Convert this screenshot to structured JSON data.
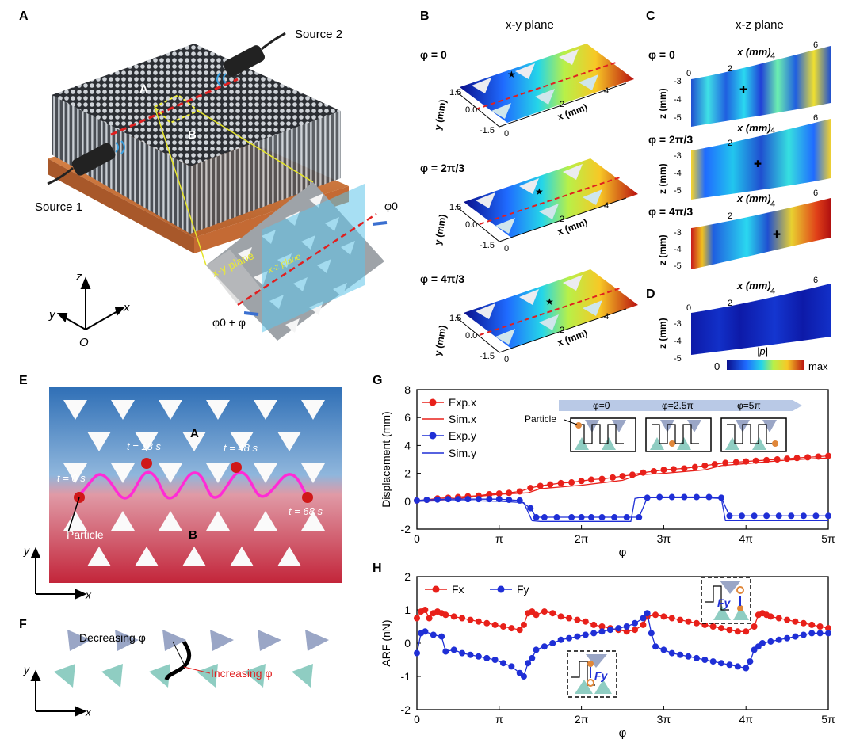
{
  "panels": {
    "A": {
      "label": "A",
      "source1": "Source 1",
      "source2": "Source 2",
      "region_a": "A",
      "region_b": "B",
      "xy_plane": "x-y plane",
      "xz_plane": "x-z plane",
      "phi0": "φ0",
      "phi0_plus_phi": "φ0 + φ",
      "axis_z": "z",
      "axis_y": "y",
      "axis_x": "x",
      "origin": "O"
    },
    "B": {
      "label": "B",
      "title": "x-y plane",
      "phases": [
        "φ = 0",
        "φ = 2π/3",
        "φ = 4π/3"
      ],
      "y_axis_label": "y (mm)",
      "x_axis_label": "x (mm)",
      "y_ticks": [
        "1.5",
        "0.0",
        "-1.5"
      ],
      "x_ticks": [
        "0",
        "2",
        "4"
      ]
    },
    "C": {
      "label": "C",
      "title": "x-z plane",
      "phases": [
        "φ = 0",
        "φ = 2π/3",
        "φ = 4π/3"
      ],
      "x_axis_label": "x (mm)",
      "z_axis_label": "z (mm)",
      "x_ticks": [
        "0",
        "2",
        "4",
        "6"
      ],
      "z_ticks": [
        "-3",
        "-4",
        "-5"
      ]
    },
    "D": {
      "label": "D",
      "x_axis_label": "x (mm)",
      "z_axis_label": "z (mm)",
      "x_ticks": [
        "0",
        "2",
        "4",
        "6"
      ],
      "z_ticks": [
        "-3",
        "-4",
        "-5"
      ],
      "colorbar_min": "0",
      "colorbar_max": "max",
      "colorbar_label": "|p|"
    },
    "E": {
      "label": "E",
      "region_a": "A",
      "region_b": "B",
      "times": [
        "t = 0 s",
        "t = 18 s",
        "t = 48 s",
        "t = 68 s"
      ],
      "particle": "Particle",
      "axis_y": "y",
      "axis_x": "x"
    },
    "F": {
      "label": "F",
      "decreasing": "Decreasing φ",
      "increasing": "Increasing φ",
      "axis_y": "y",
      "axis_x": "x"
    },
    "G": {
      "label": "G",
      "inset_phases": [
        "φ=0",
        "φ=2.5π",
        "φ=5π"
      ],
      "inset_particle": "Particle"
    },
    "H": {
      "label": "H",
      "inset_label_a": "Fy",
      "inset_label_b": "Fy"
    }
  },
  "colors": {
    "red": "#e8201a",
    "blue": "#1f2fd6",
    "field_blue": "#2f6fb6",
    "field_red": "#c3253a",
    "magenta": "#ff2bd6"
  },
  "chart_data": [
    {
      "id": "G",
      "type": "line",
      "xlabel": "φ",
      "ylabel": "Displacement (mm)",
      "xlim": [
        0,
        5
      ],
      "ylim": [
        -2,
        8
      ],
      "x_tick_values": [
        0,
        1,
        2,
        3,
        4,
        5
      ],
      "x_tick_labels": [
        "0",
        "π",
        "2π",
        "3π",
        "4π",
        "5π"
      ],
      "y_ticks": [
        -2,
        0,
        2,
        4,
        6,
        8
      ],
      "legend": "top-left",
      "series": [
        {
          "name": "Exp.x",
          "style": "markers-line",
          "color": "#e8201a",
          "x": [
            0,
            0.12,
            0.25,
            0.38,
            0.5,
            0.62,
            0.75,
            0.88,
            1.0,
            1.12,
            1.25,
            1.38,
            1.5,
            1.62,
            1.75,
            1.88,
            2.0,
            2.12,
            2.25,
            2.38,
            2.5,
            2.62,
            2.75,
            2.88,
            3.0,
            3.12,
            3.25,
            3.38,
            3.5,
            3.62,
            3.75,
            3.88,
            4.0,
            4.12,
            4.25,
            4.38,
            4.5,
            4.62,
            4.75,
            4.88,
            5.0
          ],
          "y": [
            0.05,
            0.1,
            0.2,
            0.25,
            0.3,
            0.35,
            0.4,
            0.5,
            0.55,
            0.6,
            0.7,
            0.95,
            1.1,
            1.2,
            1.3,
            1.35,
            1.45,
            1.55,
            1.6,
            1.7,
            1.8,
            1.9,
            2.05,
            2.15,
            2.25,
            2.3,
            2.35,
            2.45,
            2.55,
            2.65,
            2.75,
            2.8,
            2.85,
            2.9,
            2.95,
            3.0,
            3.05,
            3.1,
            3.15,
            3.2,
            3.25
          ]
        },
        {
          "name": "Sim.x",
          "style": "line",
          "color": "#e8201a",
          "x": [
            0,
            0.5,
            1.0,
            1.35,
            1.5,
            2.0,
            2.5,
            2.7,
            3.0,
            3.5,
            3.7,
            4.0,
            4.5,
            5.0
          ],
          "y": [
            0.0,
            0.2,
            0.5,
            0.6,
            0.9,
            1.15,
            1.5,
            1.9,
            2.0,
            2.25,
            2.55,
            2.7,
            2.95,
            3.1
          ]
        },
        {
          "name": "Exp.y",
          "style": "markers-line",
          "color": "#1f2fd6",
          "x": [
            0,
            0.12,
            0.25,
            0.38,
            0.5,
            0.62,
            0.75,
            0.88,
            1.0,
            1.12,
            1.25,
            1.38,
            1.45,
            1.55,
            1.7,
            1.88,
            2.0,
            2.12,
            2.25,
            2.4,
            2.55,
            2.7,
            2.8,
            2.95,
            3.1,
            3.25,
            3.4,
            3.55,
            3.7,
            3.8,
            3.95,
            4.1,
            4.25,
            4.4,
            4.55,
            4.7,
            4.85,
            5.0
          ],
          "y": [
            0.05,
            0.1,
            0.12,
            0.15,
            0.15,
            0.15,
            0.15,
            0.15,
            0.15,
            0.1,
            0.05,
            -0.5,
            -1.15,
            -1.15,
            -1.15,
            -1.15,
            -1.15,
            -1.15,
            -1.15,
            -1.15,
            -1.15,
            -1.15,
            0.25,
            0.3,
            0.3,
            0.3,
            0.3,
            0.3,
            0.25,
            -1.05,
            -1.05,
            -1.05,
            -1.05,
            -1.05,
            -1.05,
            -1.05,
            -1.05,
            -1.05
          ]
        },
        {
          "name": "Sim.y",
          "style": "line",
          "color": "#1f2fd6",
          "x": [
            0,
            0.5,
            1.0,
            1.3,
            1.4,
            1.5,
            2.6,
            2.65,
            2.7,
            3.0,
            3.5,
            3.7,
            3.75,
            3.8,
            4.0,
            4.5,
            5.0
          ],
          "y": [
            0.0,
            0.05,
            0.0,
            -0.1,
            -1.4,
            -1.45,
            -1.45,
            0.2,
            0.25,
            0.25,
            0.25,
            0.2,
            -1.4,
            -1.4,
            -1.4,
            -1.4,
            -1.4
          ]
        }
      ]
    },
    {
      "id": "H",
      "type": "line",
      "xlabel": "φ",
      "ylabel": "ARF (nN)",
      "xlim": [
        0,
        5
      ],
      "ylim": [
        -2,
        2
      ],
      "x_tick_values": [
        0,
        1,
        2,
        3,
        4,
        5
      ],
      "x_tick_labels": [
        "0",
        "π",
        "2π",
        "3π",
        "4π",
        "5π"
      ],
      "y_ticks": [
        -2,
        -1,
        0,
        1,
        2
      ],
      "legend": "top-left",
      "series": [
        {
          "name": "Fx",
          "style": "markers-line",
          "color": "#e8201a",
          "x": [
            0,
            0.05,
            0.1,
            0.15,
            0.2,
            0.25,
            0.3,
            0.35,
            0.45,
            0.55,
            0.65,
            0.75,
            0.85,
            0.95,
            1.05,
            1.15,
            1.25,
            1.3,
            1.35,
            1.4,
            1.45,
            1.55,
            1.65,
            1.75,
            1.85,
            1.95,
            2.05,
            2.15,
            2.25,
            2.35,
            2.45,
            2.55,
            2.65,
            2.75,
            2.8,
            2.9,
            3.0,
            3.1,
            3.2,
            3.3,
            3.4,
            3.5,
            3.6,
            3.7,
            3.8,
            3.9,
            4.0,
            4.1,
            4.15,
            4.2,
            4.25,
            4.3,
            4.4,
            4.5,
            4.6,
            4.7,
            4.8,
            4.9,
            5.0
          ],
          "y": [
            0.75,
            0.95,
            1.0,
            0.75,
            0.9,
            0.95,
            0.9,
            0.85,
            0.8,
            0.75,
            0.7,
            0.65,
            0.6,
            0.55,
            0.5,
            0.45,
            0.4,
            0.55,
            0.9,
            0.95,
            0.85,
            0.95,
            0.9,
            0.8,
            0.75,
            0.7,
            0.65,
            0.55,
            0.5,
            0.45,
            0.4,
            0.35,
            0.4,
            0.55,
            0.8,
            0.85,
            0.8,
            0.75,
            0.7,
            0.65,
            0.6,
            0.55,
            0.5,
            0.45,
            0.4,
            0.35,
            0.35,
            0.5,
            0.85,
            0.9,
            0.85,
            0.8,
            0.75,
            0.7,
            0.65,
            0.6,
            0.55,
            0.5,
            0.45
          ]
        },
        {
          "name": "Fy",
          "style": "markers-line",
          "color": "#1f2fd6",
          "x": [
            0,
            0.05,
            0.1,
            0.2,
            0.3,
            0.35,
            0.45,
            0.55,
            0.65,
            0.75,
            0.85,
            0.95,
            1.05,
            1.15,
            1.25,
            1.3,
            1.35,
            1.4,
            1.45,
            1.55,
            1.65,
            1.75,
            1.85,
            1.95,
            2.05,
            2.15,
            2.25,
            2.35,
            2.45,
            2.55,
            2.65,
            2.75,
            2.8,
            2.85,
            2.9,
            3.0,
            3.1,
            3.2,
            3.3,
            3.4,
            3.5,
            3.6,
            3.7,
            3.8,
            3.9,
            4.0,
            4.05,
            4.1,
            4.15,
            4.2,
            4.3,
            4.4,
            4.5,
            4.6,
            4.7,
            4.8,
            4.9,
            5.0
          ],
          "y": [
            -0.3,
            0.3,
            0.35,
            0.25,
            0.2,
            -0.25,
            -0.2,
            -0.3,
            -0.35,
            -0.4,
            -0.45,
            -0.5,
            -0.6,
            -0.7,
            -0.9,
            -1.0,
            -0.6,
            -0.45,
            -0.2,
            -0.1,
            0.0,
            0.1,
            0.15,
            0.2,
            0.25,
            0.3,
            0.35,
            0.4,
            0.45,
            0.5,
            0.6,
            0.75,
            0.9,
            0.3,
            -0.1,
            -0.2,
            -0.3,
            -0.35,
            -0.4,
            -0.45,
            -0.5,
            -0.55,
            -0.6,
            -0.65,
            -0.7,
            -0.75,
            -0.55,
            -0.2,
            -0.1,
            0.0,
            0.05,
            0.1,
            0.15,
            0.2,
            0.25,
            0.3,
            0.3,
            0.3
          ]
        }
      ]
    }
  ]
}
